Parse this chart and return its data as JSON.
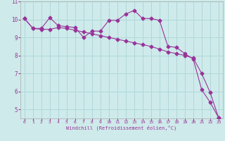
{
  "x": [
    0,
    1,
    2,
    3,
    4,
    5,
    6,
    7,
    8,
    9,
    10,
    11,
    12,
    13,
    14,
    15,
    16,
    17,
    18,
    19,
    20,
    21,
    22,
    23
  ],
  "line1": [
    10.05,
    9.5,
    9.5,
    10.1,
    9.65,
    9.6,
    9.55,
    9.0,
    9.35,
    9.35,
    9.95,
    9.95,
    10.3,
    10.5,
    10.05,
    10.05,
    9.95,
    8.5,
    8.45,
    8.1,
    7.8,
    6.1,
    5.4,
    4.55
  ],
  "line2": [
    10.05,
    9.5,
    9.45,
    9.45,
    9.55,
    9.5,
    9.4,
    9.3,
    9.2,
    9.1,
    9.0,
    8.9,
    8.8,
    8.7,
    8.6,
    8.5,
    8.35,
    8.2,
    8.1,
    8.0,
    7.85,
    7.0,
    5.95,
    4.55
  ],
  "color": "#993399",
  "bg_color": "#ceeaea",
  "grid_color": "#b0d8d8",
  "xlabel": "Windchill (Refroidissement éolien,°C)",
  "ylim": [
    4.5,
    11.0
  ],
  "xlim": [
    -0.5,
    23.5
  ],
  "yticks": [
    5,
    6,
    7,
    8,
    9,
    10,
    11
  ],
  "xticks": [
    0,
    1,
    2,
    3,
    4,
    5,
    6,
    7,
    8,
    9,
    10,
    11,
    12,
    13,
    14,
    15,
    16,
    17,
    18,
    19,
    20,
    21,
    22,
    23
  ],
  "tick_color": "#993399",
  "label_color": "#993399"
}
